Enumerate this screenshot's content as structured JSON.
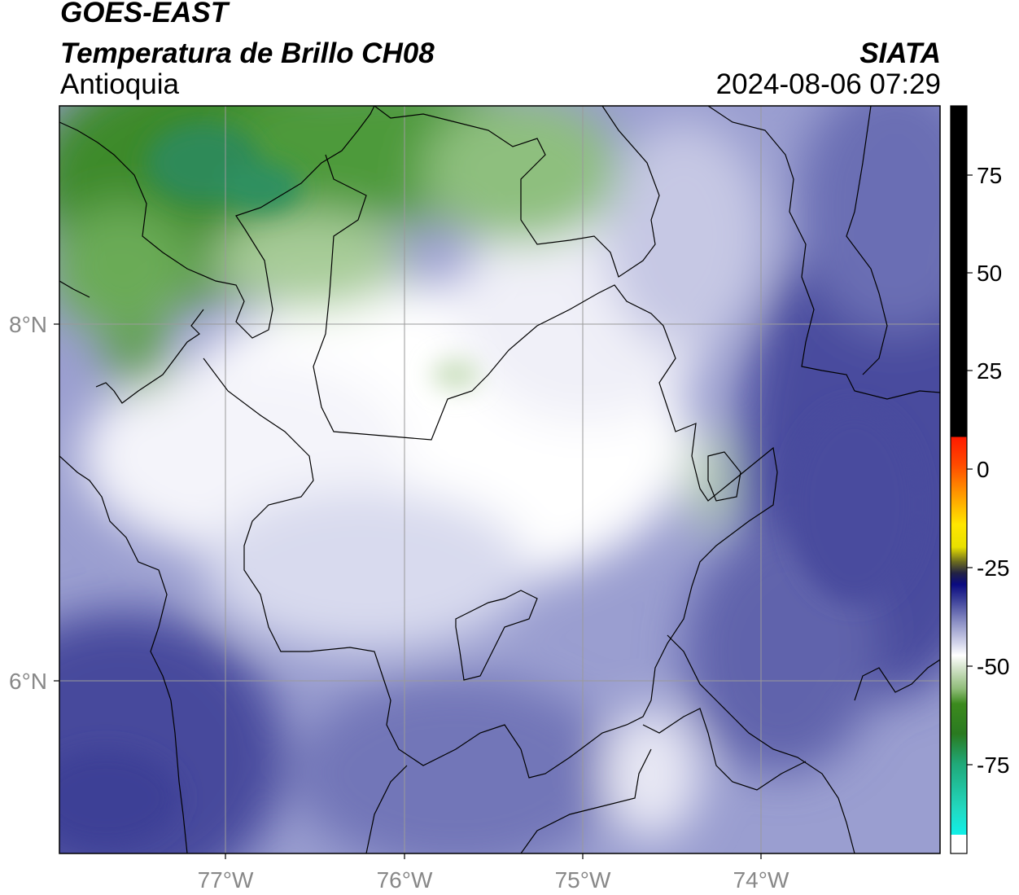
{
  "header": {
    "satellite": "GOES-EAST",
    "product": "Temperatura de Brillo CH08",
    "region": "Antioquia",
    "agency": "SIATA",
    "datetime": "2024-08-06 07:29"
  },
  "map": {
    "lon_labels": [
      "77°W",
      "76°W",
      "75°W",
      "74°W"
    ],
    "lat_labels": [
      "8°N",
      "6°N"
    ]
  },
  "colorbar": {
    "tick_labels": [
      "75",
      "50",
      "25",
      "0",
      "-25",
      "-50",
      "-75"
    ],
    "colors": {
      "warm_black": "#000000",
      "red": "#ff2a00",
      "orange": "#ff8c00",
      "yellow": "#ffee00",
      "navy": "#0a0a80",
      "lavender": "#c8cae4",
      "green": "#3c8a1e",
      "teal": "#20c8a0",
      "cyan": "#10f0e8"
    }
  }
}
